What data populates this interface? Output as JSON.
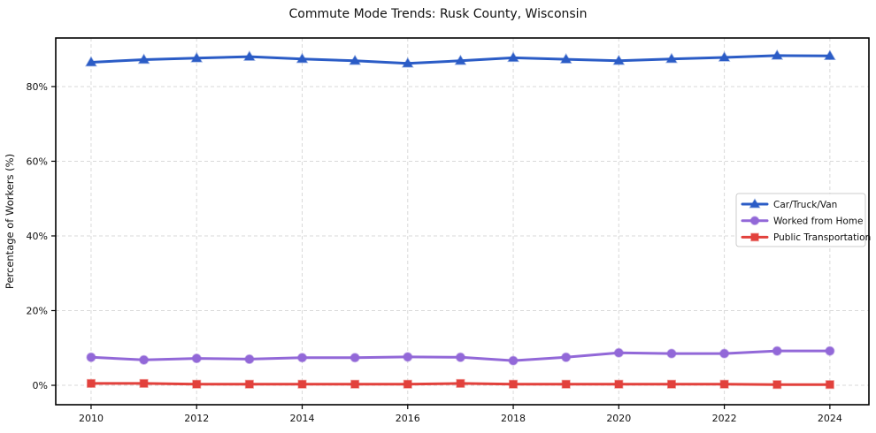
{
  "figure": {
    "title": "Commute Mode Trends: Rusk County, Wisconsin"
  },
  "chart_data": {
    "type": "line",
    "title": "Commute Mode Trends: Rusk County, Wisconsin",
    "xlabel": "",
    "ylabel": "Percentage of Workers (%)",
    "x": [
      2010,
      2011,
      2012,
      2013,
      2014,
      2015,
      2016,
      2017,
      2018,
      2019,
      2020,
      2021,
      2022,
      2023,
      2024
    ],
    "series": [
      {
        "name": "Car/Truck/Van",
        "color": "#2b5cc6",
        "marker": "triangle",
        "values": [
          86.5,
          87.2,
          87.6,
          88.0,
          87.4,
          86.9,
          86.2,
          86.9,
          87.7,
          87.3,
          86.9,
          87.4,
          87.8,
          88.3,
          88.2
        ]
      },
      {
        "name": "Worked from Home",
        "color": "#9268d8",
        "marker": "circle",
        "values": [
          7.5,
          6.8,
          7.2,
          7.0,
          7.4,
          7.4,
          7.6,
          7.5,
          6.6,
          7.5,
          8.7,
          8.5,
          8.5,
          9.2,
          9.2
        ]
      },
      {
        "name": "Public Transportation",
        "color": "#e2413c",
        "marker": "square",
        "values": [
          0.5,
          0.5,
          0.3,
          0.3,
          0.3,
          0.3,
          0.3,
          0.5,
          0.3,
          0.3,
          0.3,
          0.3,
          0.3,
          0.2,
          0.2
        ]
      }
    ],
    "xticks": [
      2010,
      2012,
      2014,
      2016,
      2018,
      2020,
      2022,
      2024
    ],
    "yticks": [
      0,
      20,
      40,
      60,
      80
    ],
    "ytick_suffix": "%",
    "xlim": [
      2009.33,
      2024.74
    ],
    "ylim": [
      -5.2,
      93.0
    ],
    "grid": true,
    "legend_position": "center right"
  },
  "colors": {
    "background": "#ffffff",
    "grid": "#d9d9d9",
    "axis": "#000000",
    "legend_border": "#cccccc",
    "car_truck_van": "#2b5cc6",
    "worked_from_home": "#9268d8",
    "public_transportation": "#e2413c"
  }
}
